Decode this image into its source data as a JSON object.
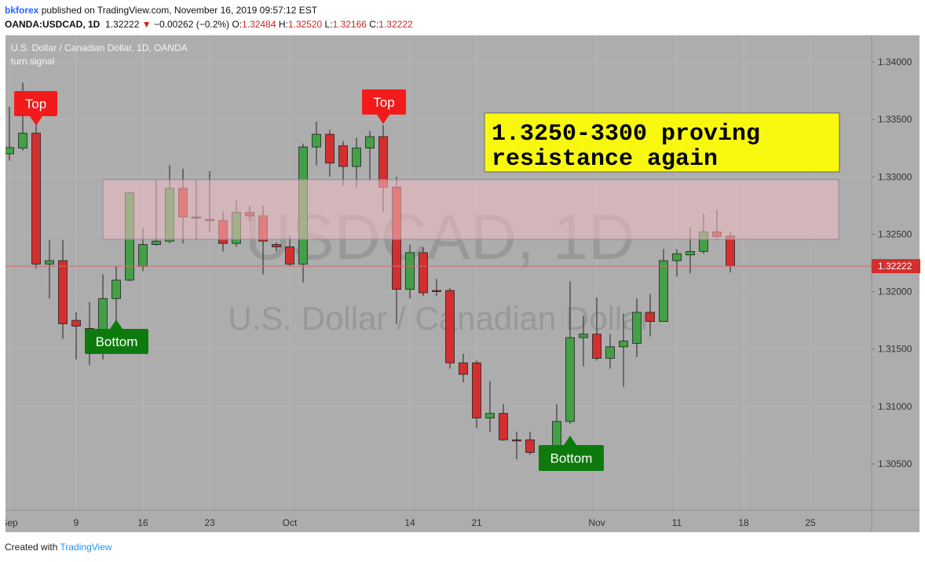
{
  "header": {
    "author": "bkforex",
    "published": "published on TradingView.com, November 16, 2019 09:57:12 EST",
    "symbol": "OANDA:USDCAD, 1D",
    "last": "1.32222",
    "arrow": "▼",
    "change": "−0.00262 (−0.2%)",
    "o_label": "O:",
    "o_value": "1.32484",
    "h_label": "H:",
    "h_value": "1.32520",
    "l_label": "L:",
    "l_value": "1.32166",
    "c_label": "C:",
    "c_value": "1.32222"
  },
  "footer": {
    "created": "Created with",
    "brand": "TradingView"
  },
  "chart_data": {
    "type": "candlestick",
    "title": "U.S. Dollar / Canadian Dollar, 1D, OANDA",
    "subtitle": "turn.signal",
    "watermark": "USDCAD, 1D",
    "watermark_description": "U.S. Dollar / Canadian Dollar",
    "up_color": "#43a047",
    "down_color": "#d32f2f",
    "categories": [
      "Sep",
      null,
      null,
      null,
      null,
      "9",
      null,
      null,
      null,
      null,
      "16",
      null,
      null,
      null,
      null,
      "23",
      null,
      null,
      null,
      null,
      null,
      "Oct",
      null,
      null,
      null,
      null,
      null,
      null,
      null,
      null,
      "14",
      null,
      null,
      null,
      null,
      "21",
      null,
      null,
      null,
      null,
      null,
      null,
      null,
      null,
      "Nov",
      null,
      null,
      null,
      null,
      null,
      "11",
      null,
      null,
      null,
      null
    ],
    "later_categories": [
      "18",
      "25"
    ],
    "open": [
      1.332,
      1.3325,
      1.3338,
      1.3224,
      1.3227,
      1.3175,
      1.3168,
      1.3152,
      1.3194,
      1.321,
      1.3222,
      1.3241,
      1.3244,
      1.329,
      1.3265,
      1.3263,
      1.3262,
      1.3242,
      1.3269,
      1.3266,
      1.3241,
      1.3239,
      1.3224,
      1.3326,
      1.3337,
      1.3327,
      1.3309,
      1.3325,
      1.3335,
      1.3291,
      1.3202,
      1.3234,
      1.3201,
      1.3201,
      1.3138,
      1.3138,
      1.309,
      1.3094,
      1.3071,
      1.3071,
      1.306,
      1.3057,
      1.3087,
      1.316,
      1.3163,
      1.3142,
      1.3152,
      1.3155,
      1.3182,
      1.3174,
      1.3227,
      1.3232,
      1.3235,
      1.3252,
      1.32484
    ],
    "high": [
      1.3361,
      1.3382,
      1.3345,
      1.3245,
      1.3245,
      1.3182,
      1.3191,
      1.3215,
      1.3222,
      1.3287,
      1.3256,
      1.3297,
      1.331,
      1.3307,
      1.3297,
      1.3305,
      1.327,
      1.328,
      1.3275,
      1.3275,
      1.3243,
      1.3249,
      1.3329,
      1.3348,
      1.3341,
      1.3331,
      1.3334,
      1.334,
      1.3345,
      1.33,
      1.3241,
      1.3239,
      1.3211,
      1.3203,
      1.3146,
      1.314,
      1.3122,
      1.3102,
      1.3078,
      1.3078,
      1.3062,
      1.3102,
      1.3209,
      1.3179,
      1.3195,
      1.3163,
      1.3181,
      1.3194,
      1.3198,
      1.3237,
      1.3237,
      1.3256,
      1.3268,
      1.3271,
      1.3252
    ],
    "low": [
      1.3314,
      1.3323,
      1.322,
      1.3194,
      1.3159,
      1.3141,
      1.3136,
      1.3141,
      1.3174,
      1.3209,
      1.3218,
      1.324,
      1.3242,
      1.3242,
      1.3245,
      1.3252,
      1.3235,
      1.3239,
      1.3261,
      1.3215,
      1.3235,
      1.3222,
      1.3208,
      1.331,
      1.33,
      1.3292,
      1.329,
      1.3297,
      1.3269,
      1.3172,
      1.3194,
      1.3196,
      1.3196,
      1.3133,
      1.3121,
      1.3081,
      1.3078,
      1.307,
      1.3054,
      1.3058,
      1.3055,
      1.3044,
      1.3085,
      1.3135,
      1.314,
      1.3133,
      1.3117,
      1.3143,
      1.3161,
      1.3174,
      1.3213,
      1.3216,
      1.3233,
      1.3246,
      1.32166
    ],
    "close": [
      1.33255,
      1.3338,
      1.3224,
      1.3227,
      1.3172,
      1.317,
      1.3152,
      1.3194,
      1.321,
      1.3286,
      1.3241,
      1.3244,
      1.329,
      1.3265,
      1.3264,
      1.3262,
      1.3242,
      1.3269,
      1.3266,
      1.3244,
      1.3239,
      1.3224,
      1.3326,
      1.3337,
      1.3312,
      1.3309,
      1.3325,
      1.3335,
      1.3291,
      1.3202,
      1.3234,
      1.3199,
      1.32,
      1.3138,
      1.3128,
      1.309,
      1.3094,
      1.3071,
      1.307,
      1.306,
      1.3057,
      1.3087,
      1.316,
      1.3163,
      1.3142,
      1.3152,
      1.3157,
      1.3182,
      1.3174,
      1.3227,
      1.3233,
      1.3235,
      1.3252,
      1.3248,
      1.32222
    ],
    "ylim": [
      1.30097,
      1.34232
    ],
    "yticks": [
      {
        "value": 1.305,
        "label": "1.30500"
      },
      {
        "value": 1.31,
        "label": "1.31000"
      },
      {
        "value": 1.315,
        "label": "1.31500"
      },
      {
        "value": 1.32,
        "label": "1.32000"
      },
      {
        "value": 1.325,
        "label": "1.32500"
      },
      {
        "value": 1.33,
        "label": "1.33000"
      },
      {
        "value": 1.335,
        "label": "1.33500"
      },
      {
        "value": 1.34,
        "label": "1.34000"
      }
    ],
    "grid": true,
    "last_price": {
      "value": 1.32222,
      "label": "1.32222"
    },
    "zone": {
      "low": 1.32455,
      "high": 1.32975,
      "color": "rgba(240,190,195,0.55)"
    },
    "annotations": {
      "top_1": "Top",
      "top_2": "Top",
      "bottom_1": "Bottom",
      "bottom_2": "Bottom",
      "note": [
        "1.3250-3300 proving",
        "resistance again"
      ]
    }
  }
}
